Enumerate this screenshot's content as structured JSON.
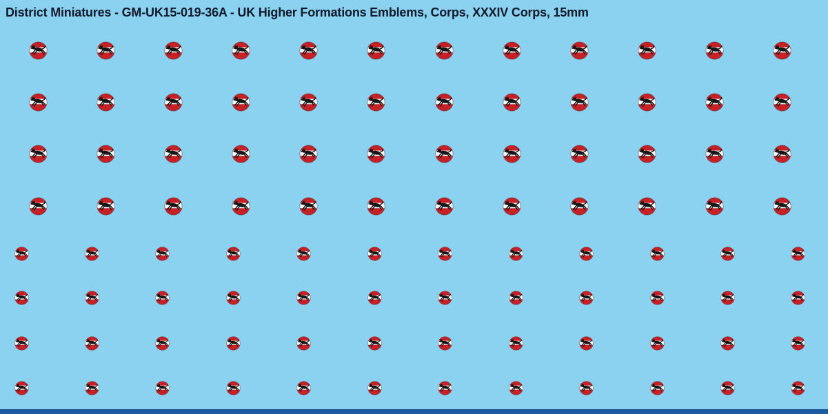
{
  "title": "District Miniatures - GM-UK15-019-36A - UK Higher Formations Emblems, Corps, XXXIV Corps, 15mm",
  "colors": {
    "background": "#8bd2f0",
    "title_text": "#111a2b",
    "emblem_red": "#c52127",
    "emblem_band": "#ffffff",
    "emblem_figure": "#161616",
    "emblem_ring": "#53282e",
    "bottom_bar": "#1d5aa0"
  },
  "sheet": {
    "emblem_icon": "leaping-panther-roundel-icon",
    "rows": [
      {
        "size": "large",
        "count": 12
      },
      {
        "size": "large",
        "count": 12
      },
      {
        "size": "large",
        "count": 12
      },
      {
        "size": "large",
        "count": 12
      },
      {
        "size": "small",
        "count": 12
      },
      {
        "size": "small",
        "count": 12
      },
      {
        "size": "small",
        "count": 12
      },
      {
        "size": "small",
        "count": 12
      }
    ]
  }
}
